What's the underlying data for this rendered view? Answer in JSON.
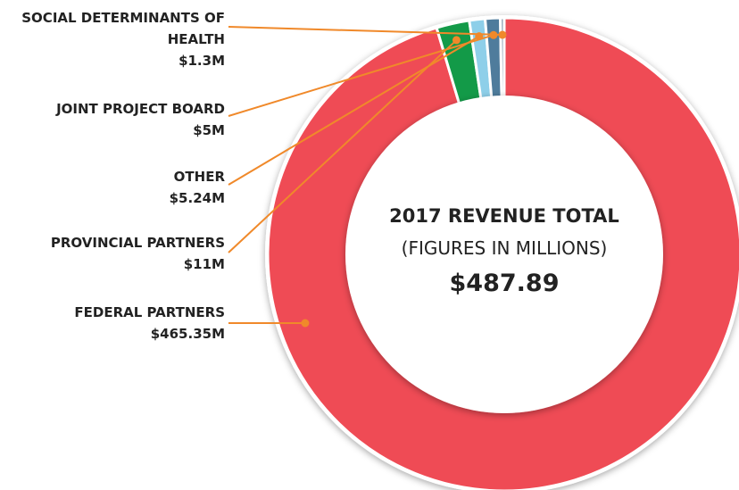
{
  "chart_data": {
    "type": "donut",
    "title": "2017 REVENUE TOTAL",
    "subtitle": "(FIGURES IN MILLIONS)",
    "center_label": "$487.89",
    "categories": [
      "FEDERAL PARTNERS",
      "PROVINCIAL PARTNERS",
      "OTHER",
      "JOINT PROJECT BOARD",
      "SOCIAL DETERMINANTS OF HEALTH"
    ],
    "values": [
      465.35,
      11,
      5.24,
      5,
      1.3
    ],
    "value_labels": [
      "$465.35M",
      "$11M",
      "$5.24M",
      "$5M",
      "$1.3M"
    ],
    "colors": [
      "#ef4b55",
      "#139a48",
      "#8ecfe9",
      "#4f7c9c",
      "#8fa3b5"
    ],
    "leader_color": "#f0892a"
  }
}
